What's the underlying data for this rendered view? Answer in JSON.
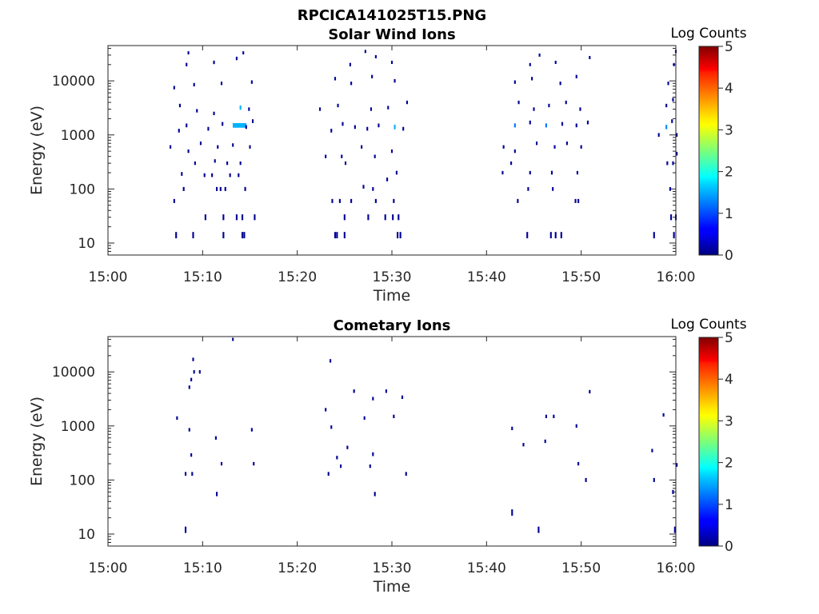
{
  "figure_title": "RPCICA141025T15.PNG",
  "chart_data": [
    {
      "type": "heatmap",
      "title": "Solar Wind Ions",
      "xlabel": "Time",
      "ylabel": "Energy (eV)",
      "xlim": [
        "15:00",
        "16:00"
      ],
      "ylim_log": [
        6,
        45000
      ],
      "yscale": "log",
      "x_ticks": [
        "15:00",
        "15:10",
        "15:20",
        "15:30",
        "15:40",
        "15:50",
        "16:00"
      ],
      "y_ticks": [
        {
          "value": 10,
          "label": "10"
        },
        {
          "value": 100,
          "label": "100"
        },
        {
          "value": 1000,
          "label": "1000"
        },
        {
          "value": 10000,
          "label": "10000"
        }
      ],
      "colorbar": {
        "label": "Log Counts",
        "min": 0,
        "max": 5,
        "ticks": [
          "0",
          "1",
          "2",
          "3",
          "4",
          "5"
        ]
      },
      "marks": [
        {
          "t": 7.2,
          "e": 14,
          "h": 2.2
        },
        {
          "t": 9.0,
          "e": 14,
          "h": 2.2
        },
        {
          "t": 12.2,
          "e": 14,
          "h": 2.2
        },
        {
          "t": 14.2,
          "e": 14,
          "h": 2.2
        },
        {
          "t": 14.4,
          "e": 14,
          "h": 2.2
        },
        {
          "t": 10.3,
          "e": 30,
          "h": 2.0
        },
        {
          "t": 12.2,
          "e": 30,
          "h": 2.0
        },
        {
          "t": 13.6,
          "e": 30,
          "h": 2.0
        },
        {
          "t": 14.2,
          "e": 30,
          "h": 2.0
        },
        {
          "t": 15.5,
          "e": 30,
          "h": 2.0
        },
        {
          "t": 7.0,
          "e": 60,
          "h": 1.4
        },
        {
          "t": 11.5,
          "e": 100,
          "h": 1.4
        },
        {
          "t": 11.9,
          "e": 100,
          "h": 1.4
        },
        {
          "t": 12.4,
          "e": 100,
          "h": 1.4
        },
        {
          "t": 14.5,
          "e": 100,
          "h": 1.4
        },
        {
          "t": 8.0,
          "e": 100,
          "h": 1.4
        },
        {
          "t": 7.8,
          "e": 190,
          "h": 1.3
        },
        {
          "t": 10.2,
          "e": 180,
          "h": 1.3
        },
        {
          "t": 11.0,
          "e": 180,
          "h": 1.3
        },
        {
          "t": 12.9,
          "e": 180,
          "h": 1.3
        },
        {
          "t": 13.8,
          "e": 180,
          "h": 1.3
        },
        {
          "t": 9.2,
          "e": 300,
          "h": 1.2
        },
        {
          "t": 11.3,
          "e": 330,
          "h": 1.2
        },
        {
          "t": 12.6,
          "e": 300,
          "h": 1.2
        },
        {
          "t": 14.0,
          "e": 300,
          "h": 1.2
        },
        {
          "t": 6.6,
          "e": 600,
          "h": 1.2
        },
        {
          "t": 8.5,
          "e": 500,
          "h": 1.2
        },
        {
          "t": 9.8,
          "e": 700,
          "h": 1.2
        },
        {
          "t": 11.6,
          "e": 600,
          "h": 1.2
        },
        {
          "t": 13.2,
          "e": 650,
          "h": 1.2
        },
        {
          "t": 15.0,
          "e": 600,
          "h": 1.2
        },
        {
          "t": 7.5,
          "e": 1200,
          "h": 1.3
        },
        {
          "t": 8.3,
          "e": 1500,
          "h": 1.3
        },
        {
          "t": 10.6,
          "e": 1300,
          "h": 1.3
        },
        {
          "t": 12.1,
          "e": 1600,
          "h": 1.3
        },
        {
          "t": 13.9,
          "e": 1500,
          "h": 1.6,
          "w": 1.6,
          "c": 1.5
        },
        {
          "t": 14.6,
          "e": 1400,
          "h": 1.3
        },
        {
          "t": 15.3,
          "e": 1800,
          "h": 1.3
        },
        {
          "t": 7.6,
          "e": 3500,
          "h": 1.2
        },
        {
          "t": 9.4,
          "e": 2800,
          "h": 1.2
        },
        {
          "t": 11.2,
          "e": 2500,
          "h": 1.2
        },
        {
          "t": 14.0,
          "e": 3200,
          "h": 1.5,
          "c": 1.5
        },
        {
          "t": 14.9,
          "e": 3000,
          "h": 1.2
        },
        {
          "t": 7.0,
          "e": 7500,
          "h": 1.2
        },
        {
          "t": 9.1,
          "e": 8500,
          "h": 1.2
        },
        {
          "t": 12.0,
          "e": 9000,
          "h": 1.2
        },
        {
          "t": 15.2,
          "e": 9500,
          "h": 1.2
        },
        {
          "t": 8.3,
          "e": 20000,
          "h": 1.2
        },
        {
          "t": 11.2,
          "e": 22000,
          "h": 1.2
        },
        {
          "t": 13.6,
          "e": 26000,
          "h": 1.2
        },
        {
          "t": 8.5,
          "e": 33000,
          "h": 1.1
        },
        {
          "t": 14.3,
          "e": 33000,
          "h": 1.1
        },
        {
          "t": 24.0,
          "e": 14,
          "h": 2.2
        },
        {
          "t": 24.2,
          "e": 14,
          "h": 2.2
        },
        {
          "t": 25.0,
          "e": 14,
          "h": 2.2
        },
        {
          "t": 30.6,
          "e": 14,
          "h": 2.2
        },
        {
          "t": 30.9,
          "e": 14,
          "h": 2.2
        },
        {
          "t": 25.0,
          "e": 30,
          "h": 2.0
        },
        {
          "t": 27.5,
          "e": 30,
          "h": 2.0
        },
        {
          "t": 29.3,
          "e": 30,
          "h": 2.0
        },
        {
          "t": 30.1,
          "e": 30,
          "h": 2.0
        },
        {
          "t": 30.7,
          "e": 30,
          "h": 2.0
        },
        {
          "t": 23.7,
          "e": 60,
          "h": 1.4
        },
        {
          "t": 24.5,
          "e": 60,
          "h": 1.4
        },
        {
          "t": 25.7,
          "e": 60,
          "h": 1.4
        },
        {
          "t": 28.3,
          "e": 60,
          "h": 1.4
        },
        {
          "t": 30.2,
          "e": 60,
          "h": 1.4
        },
        {
          "t": 27.0,
          "e": 110,
          "h": 1.3
        },
        {
          "t": 28.0,
          "e": 100,
          "h": 1.3
        },
        {
          "t": 29.5,
          "e": 150,
          "h": 1.3
        },
        {
          "t": 30.5,
          "e": 200,
          "h": 1.3
        },
        {
          "t": 23.0,
          "e": 400,
          "h": 1.2
        },
        {
          "t": 24.7,
          "e": 400,
          "h": 1.2
        },
        {
          "t": 25.1,
          "e": 300,
          "h": 1.2
        },
        {
          "t": 26.8,
          "e": 600,
          "h": 1.2
        },
        {
          "t": 28.2,
          "e": 400,
          "h": 1.2
        },
        {
          "t": 30.0,
          "e": 500,
          "h": 1.2
        },
        {
          "t": 23.6,
          "e": 1200,
          "h": 1.3
        },
        {
          "t": 24.8,
          "e": 1600,
          "h": 1.3
        },
        {
          "t": 26.1,
          "e": 1400,
          "h": 1.3
        },
        {
          "t": 27.4,
          "e": 1300,
          "h": 1.3
        },
        {
          "t": 28.6,
          "e": 1500,
          "h": 1.3
        },
        {
          "t": 30.3,
          "e": 1400,
          "h": 1.6,
          "c": 1.5
        },
        {
          "t": 31.2,
          "e": 1300,
          "h": 1.3
        },
        {
          "t": 22.4,
          "e": 3000,
          "h": 1.2
        },
        {
          "t": 24.3,
          "e": 3500,
          "h": 1.2
        },
        {
          "t": 27.8,
          "e": 3000,
          "h": 1.2
        },
        {
          "t": 29.6,
          "e": 3200,
          "h": 1.2
        },
        {
          "t": 31.6,
          "e": 4000,
          "h": 1.2
        },
        {
          "t": 24.0,
          "e": 11000,
          "h": 1.2
        },
        {
          "t": 25.7,
          "e": 9000,
          "h": 1.2
        },
        {
          "t": 27.9,
          "e": 12000,
          "h": 1.2
        },
        {
          "t": 30.3,
          "e": 10000,
          "h": 1.2
        },
        {
          "t": 25.6,
          "e": 20000,
          "h": 1.2
        },
        {
          "t": 28.3,
          "e": 28000,
          "h": 1.1
        },
        {
          "t": 30.0,
          "e": 22000,
          "h": 1.1
        },
        {
          "t": 27.2,
          "e": 35000,
          "h": 1.1
        },
        {
          "t": 44.3,
          "e": 14,
          "h": 2.2
        },
        {
          "t": 46.8,
          "e": 14,
          "h": 2.2
        },
        {
          "t": 47.3,
          "e": 14,
          "h": 2.2
        },
        {
          "t": 47.9,
          "e": 14,
          "h": 2.2
        },
        {
          "t": 43.3,
          "e": 60,
          "h": 1.4
        },
        {
          "t": 44.4,
          "e": 100,
          "h": 1.3
        },
        {
          "t": 47.0,
          "e": 100,
          "h": 1.3
        },
        {
          "t": 49.4,
          "e": 60,
          "h": 1.4
        },
        {
          "t": 49.7,
          "e": 60,
          "h": 1.4
        },
        {
          "t": 41.7,
          "e": 200,
          "h": 1.2
        },
        {
          "t": 42.6,
          "e": 300,
          "h": 1.2
        },
        {
          "t": 44.6,
          "e": 200,
          "h": 1.2
        },
        {
          "t": 46.9,
          "e": 200,
          "h": 1.3
        },
        {
          "t": 49.6,
          "e": 200,
          "h": 1.2
        },
        {
          "t": 41.8,
          "e": 600,
          "h": 1.2
        },
        {
          "t": 43.0,
          "e": 500,
          "h": 1.2
        },
        {
          "t": 45.3,
          "e": 700,
          "h": 1.2
        },
        {
          "t": 47.2,
          "e": 600,
          "h": 1.2
        },
        {
          "t": 48.5,
          "e": 700,
          "h": 1.2
        },
        {
          "t": 50.0,
          "e": 600,
          "h": 1.2
        },
        {
          "t": 43.0,
          "e": 1500,
          "h": 1.4,
          "c": 1.2
        },
        {
          "t": 44.6,
          "e": 1700,
          "h": 1.3
        },
        {
          "t": 46.3,
          "e": 1500,
          "h": 1.4,
          "c": 1.2
        },
        {
          "t": 48.0,
          "e": 1600,
          "h": 1.3
        },
        {
          "t": 49.5,
          "e": 1500,
          "h": 1.3
        },
        {
          "t": 50.7,
          "e": 1700,
          "h": 1.3
        },
        {
          "t": 43.4,
          "e": 4000,
          "h": 1.2
        },
        {
          "t": 45.0,
          "e": 3000,
          "h": 1.2
        },
        {
          "t": 46.6,
          "e": 3500,
          "h": 1.2
        },
        {
          "t": 48.4,
          "e": 4000,
          "h": 1.2
        },
        {
          "t": 49.9,
          "e": 3000,
          "h": 1.2
        },
        {
          "t": 43.0,
          "e": 9500,
          "h": 1.2
        },
        {
          "t": 44.8,
          "e": 11000,
          "h": 1.2
        },
        {
          "t": 47.8,
          "e": 9000,
          "h": 1.2
        },
        {
          "t": 49.5,
          "e": 12000,
          "h": 1.2
        },
        {
          "t": 44.6,
          "e": 20000,
          "h": 1.1
        },
        {
          "t": 47.3,
          "e": 22000,
          "h": 1.1
        },
        {
          "t": 45.6,
          "e": 30000,
          "h": 1.1
        },
        {
          "t": 50.9,
          "e": 27000,
          "h": 1.1
        },
        {
          "t": 57.7,
          "e": 14,
          "h": 2.2
        },
        {
          "t": 59.8,
          "e": 14,
          "h": 2.2
        },
        {
          "t": 59.5,
          "e": 30,
          "h": 2.0
        },
        {
          "t": 60.0,
          "e": 30,
          "h": 2.0
        },
        {
          "t": 59.4,
          "e": 100,
          "h": 1.3
        },
        {
          "t": 59.1,
          "e": 300,
          "h": 1.3
        },
        {
          "t": 59.7,
          "e": 300,
          "h": 1.3
        },
        {
          "t": 60.1,
          "e": 450,
          "h": 1.3
        },
        {
          "t": 58.2,
          "e": 1000,
          "h": 1.3
        },
        {
          "t": 59.0,
          "e": 1400,
          "h": 1.5,
          "c": 1.3
        },
        {
          "t": 59.6,
          "e": 1800,
          "h": 1.3
        },
        {
          "t": 60.1,
          "e": 1000,
          "h": 1.3
        },
        {
          "t": 59.0,
          "e": 3500,
          "h": 1.2
        },
        {
          "t": 59.7,
          "e": 4500,
          "h": 1.2
        },
        {
          "t": 59.2,
          "e": 9000,
          "h": 1.2
        },
        {
          "t": 59.8,
          "e": 20000,
          "h": 1.1
        },
        {
          "t": 60.0,
          "e": 35000,
          "h": 1.1
        }
      ]
    },
    {
      "type": "heatmap",
      "title": "Cometary Ions",
      "xlabel": "Time",
      "ylabel": "Energy (eV)",
      "xlim": [
        "15:00",
        "16:00"
      ],
      "ylim_log": [
        6,
        45000
      ],
      "yscale": "log",
      "x_ticks": [
        "15:00",
        "15:10",
        "15:20",
        "15:30",
        "15:40",
        "15:50",
        "16:00"
      ],
      "y_ticks": [
        {
          "value": 10,
          "label": "10"
        },
        {
          "value": 100,
          "label": "100"
        },
        {
          "value": 1000,
          "label": "1000"
        },
        {
          "value": 10000,
          "label": "10000"
        }
      ],
      "colorbar": {
        "label": "Log Counts",
        "min": 0,
        "max": 5,
        "ticks": [
          "0",
          "1",
          "2",
          "3",
          "4",
          "5"
        ]
      },
      "marks": [
        {
          "t": 8.2,
          "e": 12,
          "h": 2.2
        },
        {
          "t": 45.5,
          "e": 12,
          "h": 2.2
        },
        {
          "t": 59.9,
          "e": 12,
          "h": 2.2
        },
        {
          "t": 42.7,
          "e": 25,
          "h": 2.2
        },
        {
          "t": 11.5,
          "e": 55,
          "h": 1.5
        },
        {
          "t": 28.2,
          "e": 55,
          "h": 1.5
        },
        {
          "t": 8.2,
          "e": 130,
          "h": 1.3
        },
        {
          "t": 8.9,
          "e": 130,
          "h": 1.3
        },
        {
          "t": 23.3,
          "e": 130,
          "h": 1.3
        },
        {
          "t": 31.5,
          "e": 130,
          "h": 1.3
        },
        {
          "t": 50.5,
          "e": 100,
          "h": 1.4
        },
        {
          "t": 57.7,
          "e": 100,
          "h": 1.4
        },
        {
          "t": 59.7,
          "e": 60,
          "h": 1.4
        },
        {
          "t": 12.0,
          "e": 200,
          "h": 1.2
        },
        {
          "t": 15.4,
          "e": 200,
          "h": 1.2
        },
        {
          "t": 24.6,
          "e": 180,
          "h": 1.2
        },
        {
          "t": 27.7,
          "e": 180,
          "h": 1.2
        },
        {
          "t": 49.7,
          "e": 200,
          "h": 1.2
        },
        {
          "t": 60.1,
          "e": 190,
          "h": 1.3
        },
        {
          "t": 8.8,
          "e": 290,
          "h": 1.2
        },
        {
          "t": 24.2,
          "e": 260,
          "h": 1.2
        },
        {
          "t": 28.0,
          "e": 300,
          "h": 1.3
        },
        {
          "t": 57.5,
          "e": 350,
          "h": 1.2
        },
        {
          "t": 25.3,
          "e": 400,
          "h": 1.2
        },
        {
          "t": 43.9,
          "e": 450,
          "h": 1.2
        },
        {
          "t": 46.2,
          "e": 520,
          "h": 1.2
        },
        {
          "t": 11.4,
          "e": 600,
          "h": 1.2
        },
        {
          "t": 8.6,
          "e": 850,
          "h": 1.2
        },
        {
          "t": 15.2,
          "e": 850,
          "h": 1.2
        },
        {
          "t": 23.6,
          "e": 950,
          "h": 1.2
        },
        {
          "t": 42.7,
          "e": 900,
          "h": 1.2
        },
        {
          "t": 49.5,
          "e": 1000,
          "h": 1.2
        },
        {
          "t": 7.3,
          "e": 1400,
          "h": 1.2
        },
        {
          "t": 27.1,
          "e": 1400,
          "h": 1.2
        },
        {
          "t": 30.2,
          "e": 1500,
          "h": 1.2
        },
        {
          "t": 46.3,
          "e": 1500,
          "h": 1.2
        },
        {
          "t": 47.1,
          "e": 1500,
          "h": 1.2
        },
        {
          "t": 58.7,
          "e": 1600,
          "h": 1.2
        },
        {
          "t": 23.0,
          "e": 2000,
          "h": 1.2
        },
        {
          "t": 28.0,
          "e": 3200,
          "h": 1.2
        },
        {
          "t": 31.1,
          "e": 3400,
          "h": 1.2
        },
        {
          "t": 26.0,
          "e": 4400,
          "h": 1.2
        },
        {
          "t": 29.4,
          "e": 4400,
          "h": 1.2
        },
        {
          "t": 50.9,
          "e": 4300,
          "h": 1.2
        },
        {
          "t": 8.6,
          "e": 5200,
          "h": 1.2
        },
        {
          "t": 8.8,
          "e": 7200,
          "h": 1.2
        },
        {
          "t": 9.1,
          "e": 10000,
          "h": 1.2
        },
        {
          "t": 9.7,
          "e": 10000,
          "h": 1.2
        },
        {
          "t": 9.0,
          "e": 17000,
          "h": 1.2
        },
        {
          "t": 23.5,
          "e": 16000,
          "h": 1.2
        },
        {
          "t": 13.2,
          "e": 40000,
          "h": 1.1
        }
      ]
    }
  ]
}
